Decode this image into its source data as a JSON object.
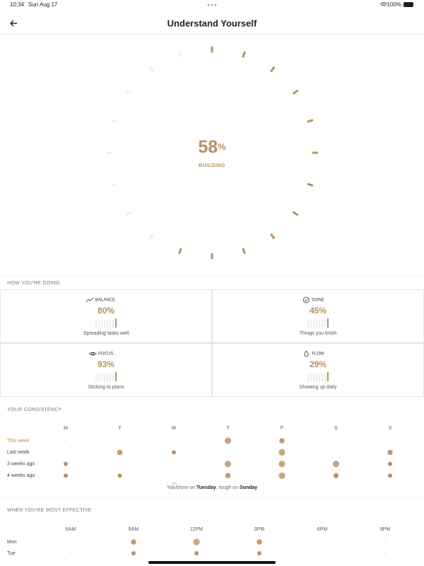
{
  "status_bar": {
    "time": "10:34",
    "date": "Sun Aug 17",
    "battery": "100%"
  },
  "header": {
    "title": "Understand Yourself"
  },
  "score": {
    "value": 58,
    "unit": "%",
    "label": "BUILDING"
  },
  "doing": {
    "title": "HOW YOU'RE DOING",
    "cards": [
      {
        "label": "BALANCE",
        "value": "80%",
        "caption": "Spreading tasks well"
      },
      {
        "label": "DONE",
        "value": "45%",
        "caption": "Things you finish"
      },
      {
        "label": "FOCUS",
        "value": "93%",
        "caption": "Sticking to plans"
      },
      {
        "label": "FLOW",
        "value": "29%",
        "caption": "Showing up daily"
      }
    ]
  },
  "consistency": {
    "title": "YOUR CONSISTENCY",
    "days": [
      "M",
      "T",
      "W",
      "T",
      "F",
      "S",
      "S"
    ],
    "rows": [
      {
        "label": "This week",
        "levels": [
          0,
          0,
          0,
          4,
          3,
          0,
          0
        ]
      },
      {
        "label": "Last week",
        "levels": [
          0,
          3,
          2,
          0,
          4,
          0,
          3
        ]
      },
      {
        "label": "3 weeks ago",
        "levels": [
          2,
          0,
          0,
          4,
          4,
          4,
          2
        ]
      },
      {
        "label": "4 weeks ago",
        "levels": [
          2,
          2,
          0,
          3,
          4,
          3,
          2
        ]
      }
    ],
    "note": [
      "You shine on ",
      "Tuesday",
      ", tough on ",
      "Sunday"
    ]
  },
  "effective": {
    "title": "WHEN YOU'RE MOST EFFECTIVE",
    "hours": [
      "6AM",
      "9AM",
      "12PM",
      "3PM",
      "6PM",
      "9PM"
    ],
    "rows": [
      {
        "label": "Mon",
        "levels": [
          0,
          3,
          4,
          3,
          0,
          0
        ]
      },
      {
        "label": "Tue",
        "levels": [
          0,
          2,
          2,
          2,
          0,
          0
        ]
      }
    ]
  }
}
